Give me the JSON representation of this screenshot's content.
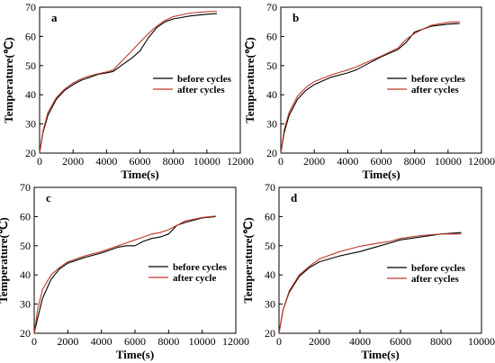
{
  "chart_data": [
    {
      "panel": "a",
      "type": "line",
      "xlabel": "Time(s)",
      "ylabel": "Temperature(℃)",
      "xlim": [
        0,
        12000
      ],
      "ylim": [
        20,
        70
      ],
      "xticks": [
        0,
        2000,
        4000,
        6000,
        8000,
        10000,
        12000
      ],
      "yticks": [
        20,
        30,
        40,
        50,
        60,
        70
      ],
      "legend": "center-right",
      "series": [
        {
          "name": "before cycles",
          "color": "#000000",
          "x": [
            0,
            200,
            500,
            1000,
            1500,
            2000,
            2500,
            3000,
            3500,
            4000,
            4400,
            5000,
            5500,
            6000,
            6500,
            7000,
            7500,
            8000,
            9000,
            10000,
            10600
          ],
          "y": [
            20,
            27,
            33,
            38.5,
            41.5,
            43.5,
            45,
            46,
            47,
            47.5,
            48,
            50.5,
            52.5,
            55,
            59.5,
            63,
            65,
            66,
            67,
            67.6,
            67.8
          ]
        },
        {
          "name": "after cycles",
          "color": "#c0392b",
          "x": [
            0,
            200,
            500,
            1000,
            1500,
            2000,
            2500,
            3000,
            3500,
            4000,
            4400,
            5000,
            5500,
            6000,
            6500,
            7000,
            7500,
            8000,
            9000,
            10000,
            10600
          ],
          "y": [
            20,
            27.5,
            34,
            39,
            42,
            44,
            45.5,
            46.5,
            47.2,
            47.8,
            48.5,
            52,
            55,
            58,
            61,
            63.5,
            65.5,
            66.8,
            68,
            68.5,
            68.6
          ]
        }
      ]
    },
    {
      "panel": "b",
      "type": "line",
      "xlabel": "Time(s)",
      "ylabel": "Temperature(℃)",
      "xlim": [
        0,
        12000
      ],
      "ylim": [
        20,
        70
      ],
      "xticks": [
        0,
        2000,
        4000,
        6000,
        8000,
        10000,
        12000
      ],
      "yticks": [
        20,
        30,
        40,
        50,
        60,
        70
      ],
      "legend": "center-right",
      "series": [
        {
          "name": "before cycles",
          "color": "#000000",
          "x": [
            0,
            200,
            500,
            1000,
            1500,
            2000,
            3000,
            4000,
            4500,
            5000,
            6000,
            7000,
            7500,
            8000,
            8500,
            9000,
            10000,
            10700
          ],
          "y": [
            20,
            27,
            33,
            38.5,
            41.5,
            43.5,
            46,
            47.5,
            48.5,
            50,
            53,
            55.5,
            58,
            61.5,
            62.5,
            63.5,
            64.2,
            64.4
          ]
        },
        {
          "name": "after cycles",
          "color": "#c0392b",
          "x": [
            0,
            200,
            500,
            1000,
            1500,
            2000,
            3000,
            4000,
            4500,
            5000,
            6000,
            7000,
            7500,
            8000,
            8500,
            9000,
            10000,
            10700
          ],
          "y": [
            20,
            28,
            34,
            39.5,
            42.5,
            44.5,
            46.8,
            48.5,
            49.5,
            50.8,
            53.2,
            56,
            59,
            61,
            62.5,
            63.8,
            64.8,
            65
          ]
        }
      ]
    },
    {
      "panel": "c",
      "type": "line",
      "xlabel": "Time(s)",
      "ylabel": "Temperature(℃)",
      "xlim": [
        0,
        12000
      ],
      "ylim": [
        20,
        70
      ],
      "xticks": [
        0,
        2000,
        4000,
        6000,
        8000,
        10000,
        12000
      ],
      "yticks": [
        20,
        30,
        40,
        50,
        60,
        70
      ],
      "legend": "center-right",
      "series": [
        {
          "name": "before cycles",
          "color": "#000000",
          "x": [
            0,
            200,
            500,
            1000,
            1500,
            2000,
            3000,
            4000,
            5000,
            5500,
            6000,
            6500,
            7000,
            7500,
            8000,
            8500,
            9000,
            10000,
            10800
          ],
          "y": [
            20,
            25,
            32,
            38.5,
            42,
            44,
            46,
            47.5,
            49.5,
            50,
            50,
            51.5,
            52.5,
            53,
            54,
            57,
            58,
            59.5,
            60
          ]
        },
        {
          "name": "after cycle",
          "color": "#c0392b",
          "x": [
            0,
            200,
            500,
            1000,
            1500,
            2000,
            3000,
            4000,
            5000,
            5500,
            6000,
            6500,
            7000,
            7500,
            8000,
            8500,
            9000,
            10000,
            10800
          ],
          "y": [
            20,
            28,
            35,
            40,
            42.5,
            44.5,
            46.5,
            48,
            50,
            51,
            52,
            53,
            54,
            54.5,
            55.5,
            57,
            58.5,
            59.7,
            60.2
          ]
        }
      ]
    },
    {
      "panel": "d",
      "type": "line",
      "xlabel": "Time(s)",
      "ylabel": "Temperature(℃)",
      "xlim": [
        0,
        10000
      ],
      "ylim": [
        20,
        70
      ],
      "xticks": [
        0,
        2000,
        4000,
        6000,
        8000,
        10000
      ],
      "yticks": [
        20,
        30,
        40,
        50,
        60,
        70
      ],
      "legend": "center-right",
      "series": [
        {
          "name": "before cycles",
          "color": "#000000",
          "x": [
            0,
            200,
            500,
            1000,
            1500,
            2000,
            3000,
            4000,
            5000,
            5500,
            6000,
            7000,
            8000,
            9000
          ],
          "y": [
            20,
            28,
            34,
            39.5,
            42.5,
            44.5,
            46.5,
            48,
            50,
            51,
            52,
            53,
            54,
            54.5
          ]
        },
        {
          "name": "after cycles",
          "color": "#c0392b",
          "x": [
            0,
            200,
            500,
            1000,
            1500,
            2000,
            3000,
            4000,
            5000,
            5500,
            6000,
            7000,
            8000,
            9000
          ],
          "y": [
            20,
            28,
            34.5,
            40,
            43,
            45.5,
            48,
            49.8,
            51,
            51.5,
            52.5,
            53.5,
            54,
            54
          ]
        }
      ]
    }
  ]
}
